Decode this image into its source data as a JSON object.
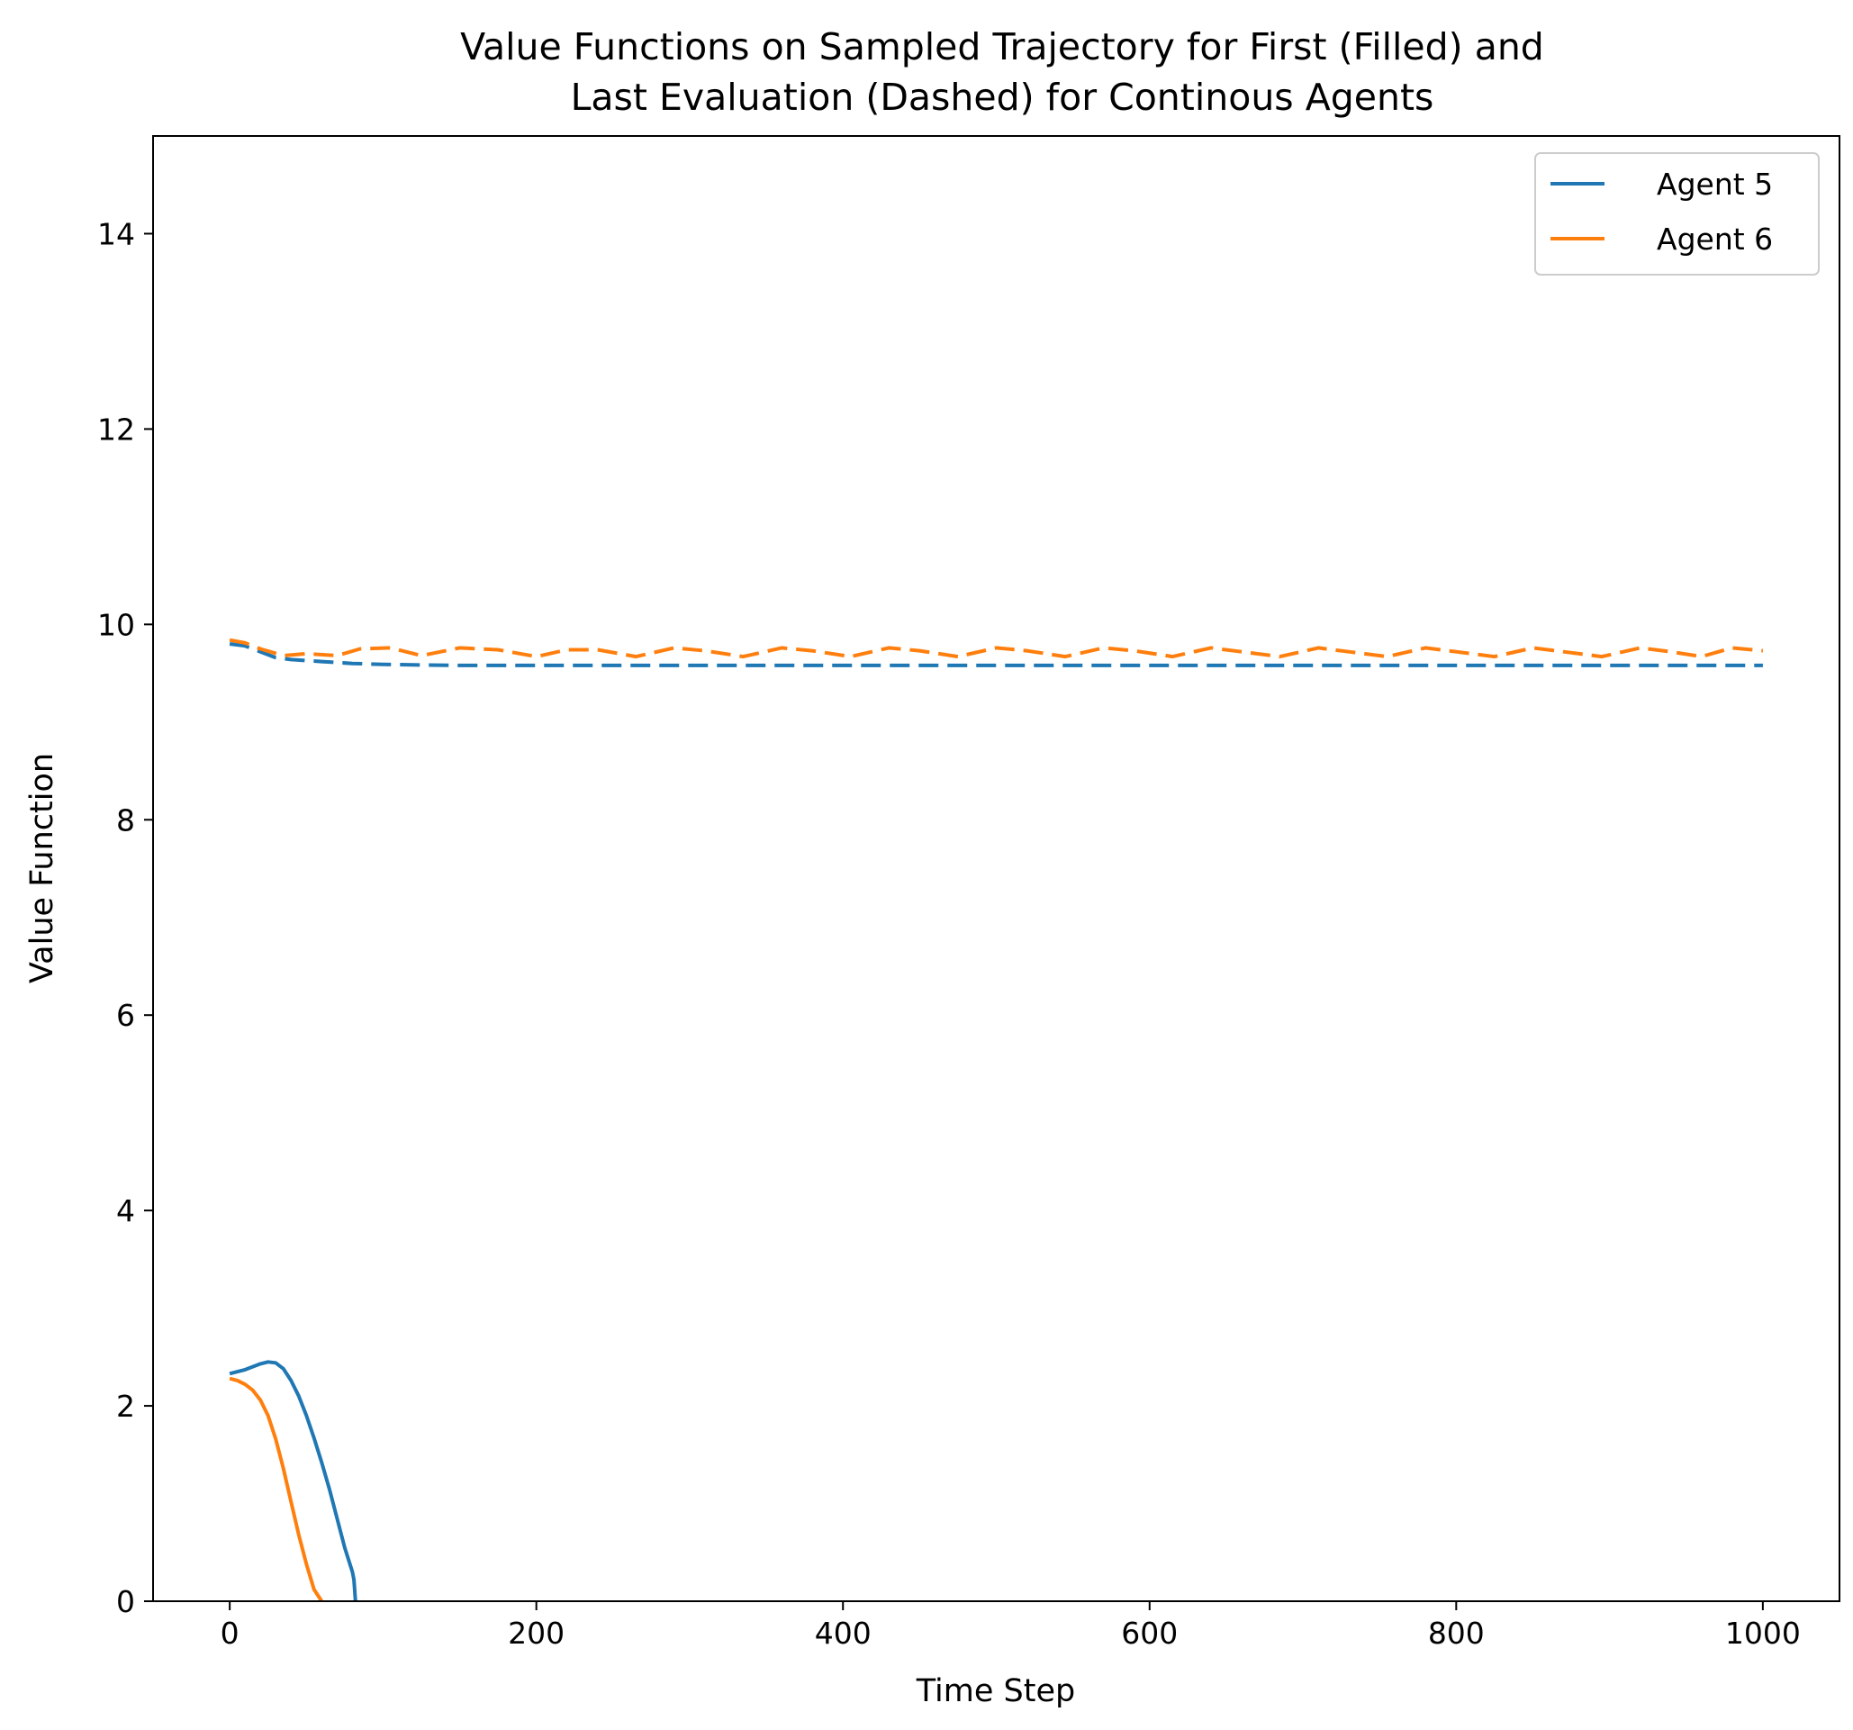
{
  "chart_data": {
    "type": "line",
    "title_line1": "Value Functions on Sampled Trajectory for First (Filled) and",
    "title_line2": "Last Evaluation (Dashed) for Continous Agents",
    "xlabel": "Time Step",
    "ylabel": "Value Function",
    "xlim": [
      -50,
      1050
    ],
    "ylim": [
      0,
      15
    ],
    "xticks": [
      0,
      200,
      400,
      600,
      800,
      1000
    ],
    "yticks": [
      0,
      2,
      4,
      6,
      8,
      10,
      12,
      14
    ],
    "grid": false,
    "legend_position": "top-right",
    "legend": [
      {
        "label": "Agent 5",
        "color": "#1f77b4"
      },
      {
        "label": "Agent 6",
        "color": "#ff7f0e"
      }
    ],
    "series": [
      {
        "name": "Agent 5",
        "style": "solid",
        "color": "#1f77b4",
        "x": [
          0,
          10,
          20,
          25,
          30,
          35,
          40,
          45,
          50,
          55,
          60,
          65,
          70,
          75,
          80,
          81,
          82
        ],
        "y": [
          2.33,
          2.37,
          2.43,
          2.45,
          2.44,
          2.38,
          2.26,
          2.1,
          1.9,
          1.67,
          1.42,
          1.15,
          0.85,
          0.55,
          0.3,
          0.22,
          0.0
        ]
      },
      {
        "name": "Agent 5",
        "style": "dashed",
        "color": "#1f77b4",
        "x": [
          0,
          10,
          20,
          30,
          40,
          60,
          80,
          100,
          150,
          200,
          300,
          400,
          500,
          600,
          700,
          800,
          900,
          1000
        ],
        "y": [
          9.8,
          9.78,
          9.72,
          9.66,
          9.64,
          9.62,
          9.6,
          9.59,
          9.58,
          9.58,
          9.58,
          9.58,
          9.58,
          9.58,
          9.58,
          9.58,
          9.58,
          9.58
        ]
      },
      {
        "name": "Agent 6",
        "style": "solid",
        "color": "#ff7f0e",
        "x": [
          0,
          5,
          10,
          15,
          20,
          25,
          30,
          35,
          40,
          45,
          50,
          55,
          60
        ],
        "y": [
          2.28,
          2.26,
          2.22,
          2.16,
          2.06,
          1.9,
          1.66,
          1.36,
          1.02,
          0.68,
          0.38,
          0.12,
          0.0
        ]
      },
      {
        "name": "Agent 6",
        "style": "dashed",
        "color": "#ff7f0e",
        "x": [
          0,
          10,
          20,
          35,
          50,
          70,
          85,
          105,
          125,
          150,
          175,
          200,
          220,
          240,
          265,
          290,
          310,
          335,
          360,
          380,
          405,
          430,
          450,
          475,
          500,
          520,
          545,
          570,
          590,
          615,
          640,
          660,
          685,
          710,
          730,
          755,
          780,
          800,
          825,
          850,
          870,
          895,
          920,
          940,
          960,
          980,
          1000
        ],
        "y": [
          9.84,
          9.81,
          9.75,
          9.68,
          9.7,
          9.68,
          9.75,
          9.76,
          9.68,
          9.76,
          9.74,
          9.67,
          9.74,
          9.74,
          9.67,
          9.76,
          9.73,
          9.67,
          9.76,
          9.73,
          9.67,
          9.76,
          9.73,
          9.67,
          9.76,
          9.73,
          9.67,
          9.76,
          9.73,
          9.67,
          9.76,
          9.72,
          9.67,
          9.76,
          9.72,
          9.67,
          9.76,
          9.72,
          9.67,
          9.76,
          9.72,
          9.67,
          9.76,
          9.72,
          9.67,
          9.76,
          9.73
        ]
      }
    ]
  }
}
